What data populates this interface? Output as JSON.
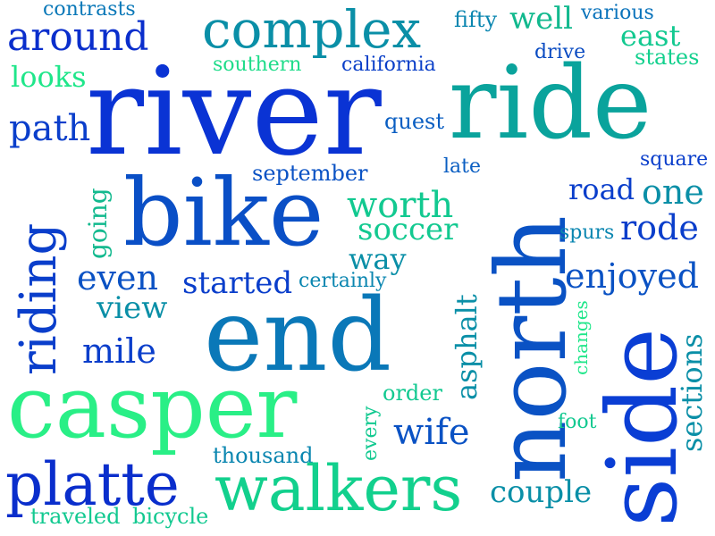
{
  "colors": {
    "background": "#ffffff",
    "palette": [
      "#0033cc",
      "#0a55cc",
      "#0a7fb3",
      "#0aa7a0",
      "#19d98a",
      "#29ef86"
    ]
  },
  "words": [
    {
      "id": "contrasts",
      "text": "contrasts",
      "color": "#0a78b8"
    },
    {
      "id": "around",
      "text": "around",
      "color": "#0a2ecc"
    },
    {
      "id": "complex",
      "text": "complex",
      "color": "#0a8fa7"
    },
    {
      "id": "fifty",
      "text": "fifty",
      "color": "#0a86b0"
    },
    {
      "id": "well",
      "text": "well",
      "color": "#12b98e"
    },
    {
      "id": "various",
      "text": "various",
      "color": "#0a73bb"
    },
    {
      "id": "east",
      "text": "east",
      "color": "#12c990"
    },
    {
      "id": "states",
      "text": "states",
      "color": "#12d08d"
    },
    {
      "id": "drive",
      "text": "drive",
      "color": "#0a4bc2"
    },
    {
      "id": "looks",
      "text": "looks",
      "color": "#1fe68a"
    },
    {
      "id": "southern",
      "text": "southern",
      "color": "#1fdc8a"
    },
    {
      "id": "california",
      "text": "california",
      "color": "#0a3fc8"
    },
    {
      "id": "river",
      "text": "river",
      "color": "#0a33d4"
    },
    {
      "id": "ride",
      "text": "ride",
      "color": "#0aa39c"
    },
    {
      "id": "path",
      "text": "path",
      "color": "#0a3ecb"
    },
    {
      "id": "quest",
      "text": "quest",
      "color": "#0a5ec2"
    },
    {
      "id": "late",
      "text": "late",
      "color": "#0a5ec2"
    },
    {
      "id": "september",
      "text": "september",
      "color": "#0a52c4"
    },
    {
      "id": "square",
      "text": "square",
      "color": "#0a3ecb"
    },
    {
      "id": "riding",
      "text": "riding",
      "color": "#0a3ecb"
    },
    {
      "id": "going",
      "text": "going",
      "color": "#12b98e"
    },
    {
      "id": "bike",
      "text": "bike",
      "color": "#0a4fc6"
    },
    {
      "id": "worth",
      "text": "worth",
      "color": "#12c990"
    },
    {
      "id": "soccer",
      "text": "soccer",
      "color": "#12c990"
    },
    {
      "id": "north",
      "text": "north",
      "color": "#0a52c4"
    },
    {
      "id": "road",
      "text": "road",
      "color": "#0a3ecb"
    },
    {
      "id": "one",
      "text": "one",
      "color": "#0a8fa7"
    },
    {
      "id": "rode",
      "text": "rode",
      "color": "#0a3ecb"
    },
    {
      "id": "spurs",
      "text": "spurs",
      "color": "#0a86b0"
    },
    {
      "id": "even",
      "text": "even",
      "color": "#0a52c4"
    },
    {
      "id": "way",
      "text": "way",
      "color": "#0a8fa7"
    },
    {
      "id": "started",
      "text": "started",
      "color": "#0a3ecb"
    },
    {
      "id": "certainly",
      "text": "certainly",
      "color": "#0a86b0"
    },
    {
      "id": "enjoyed",
      "text": "enjoyed",
      "color": "#0a52c4"
    },
    {
      "id": "view",
      "text": "view",
      "color": "#0a8fa7"
    },
    {
      "id": "asphalt",
      "text": "asphalt",
      "color": "#0a8fa7"
    },
    {
      "id": "changes",
      "text": "changes",
      "color": "#1fe68a"
    },
    {
      "id": "mile",
      "text": "mile",
      "color": "#0a3ecb"
    },
    {
      "id": "end",
      "text": "end",
      "color": "#0a78b8"
    },
    {
      "id": "sections",
      "text": "sections",
      "color": "#0a8fa7"
    },
    {
      "id": "casper",
      "text": "casper",
      "color": "#29ef86"
    },
    {
      "id": "order",
      "text": "order",
      "color": "#12c990"
    },
    {
      "id": "side",
      "text": "side",
      "color": "#0a3ed4"
    },
    {
      "id": "every",
      "text": "every",
      "color": "#12c990"
    },
    {
      "id": "wife",
      "text": "wife",
      "color": "#0a52c4"
    },
    {
      "id": "foot",
      "text": "foot",
      "color": "#12c990"
    },
    {
      "id": "thousand",
      "text": "thousand",
      "color": "#0a86b0"
    },
    {
      "id": "platte",
      "text": "platte",
      "color": "#0a2ecc"
    },
    {
      "id": "walkers",
      "text": "walkers",
      "color": "#12d08d"
    },
    {
      "id": "couple",
      "text": "couple",
      "color": "#0a8fa7"
    },
    {
      "id": "traveled",
      "text": "traveled",
      "color": "#12c990"
    },
    {
      "id": "bicycle",
      "text": "bicycle",
      "color": "#12c990"
    }
  ]
}
